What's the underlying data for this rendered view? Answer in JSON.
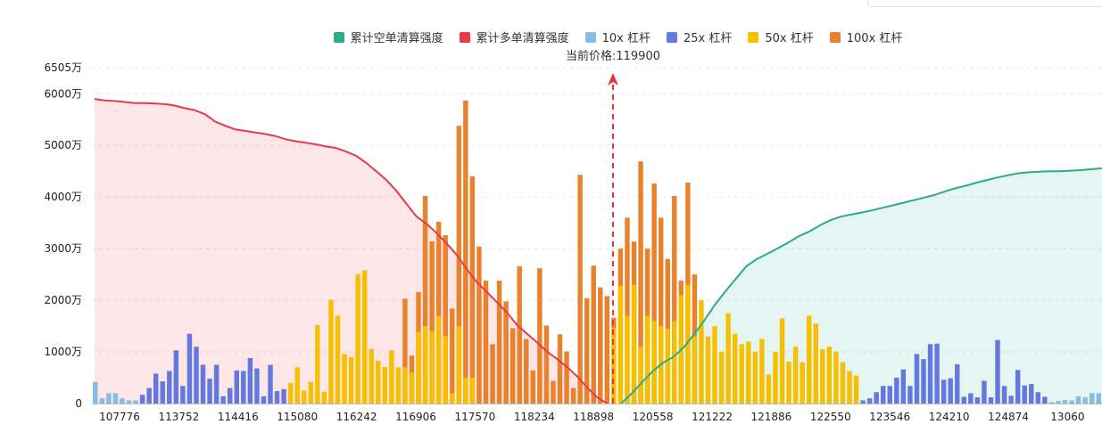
{
  "chart_data": {
    "type": "bar",
    "current_price_label": "当前价格:119900",
    "current_price": 119900,
    "legend": [
      {
        "label": "累计空单清算强度",
        "color": "#2bab8a"
      },
      {
        "label": "累计多单清算强度",
        "color": "#e83a4a"
      },
      {
        "label": "10x 杠杆",
        "color": "#86bde0"
      },
      {
        "label": "25x 杠杆",
        "color": "#6479e0"
      },
      {
        "label": "50x 杠杆",
        "color": "#f6c000"
      },
      {
        "label": "100x 杠杆",
        "color": "#e8822c"
      }
    ],
    "yticks": [
      {
        "label": "6505万",
        "value": 6505
      },
      {
        "label": "6000万",
        "value": 6000
      },
      {
        "label": "5000万",
        "value": 5000
      },
      {
        "label": "4000万",
        "value": 4000
      },
      {
        "label": "3000万",
        "value": 3000
      },
      {
        "label": "2000万",
        "value": 2000
      },
      {
        "label": "1000万",
        "value": 1000
      },
      {
        "label": "0",
        "value": 0
      }
    ],
    "ylim": [
      0,
      6505
    ],
    "xtick_labels": [
      "107776",
      "113752",
      "114416",
      "115080",
      "116242",
      "116906",
      "117570",
      "118234",
      "118898",
      "120558",
      "121222",
      "121886",
      "122550",
      "123546",
      "124210",
      "124874",
      "13060"
    ],
    "bars": [
      {
        "v": 420,
        "l": "10x"
      },
      {
        "v": 100,
        "l": "10x"
      },
      {
        "v": 200,
        "l": "10x"
      },
      {
        "v": 200,
        "l": "10x"
      },
      {
        "v": 100,
        "l": "10x"
      },
      {
        "v": 60,
        "l": "10x"
      },
      {
        "v": 60,
        "l": "10x"
      },
      {
        "v": 170,
        "l": "25x"
      },
      {
        "v": 300,
        "l": "25x"
      },
      {
        "v": 580,
        "l": "25x"
      },
      {
        "v": 430,
        "l": "25x"
      },
      {
        "v": 630,
        "l": "25x"
      },
      {
        "v": 1030,
        "l": "25x"
      },
      {
        "v": 340,
        "l": "25x"
      },
      {
        "v": 1350,
        "l": "25x"
      },
      {
        "v": 1100,
        "l": "25x"
      },
      {
        "v": 750,
        "l": "25x"
      },
      {
        "v": 480,
        "l": "25x"
      },
      {
        "v": 750,
        "l": "25x"
      },
      {
        "v": 140,
        "l": "25x"
      },
      {
        "v": 300,
        "l": "25x"
      },
      {
        "v": 640,
        "l": "25x"
      },
      {
        "v": 630,
        "l": "25x"
      },
      {
        "v": 880,
        "l": "25x"
      },
      {
        "v": 680,
        "l": "25x"
      },
      {
        "v": 140,
        "l": "25x"
      },
      {
        "v": 750,
        "l": "25x"
      },
      {
        "v": 240,
        "l": "25x"
      },
      {
        "v": 280,
        "l": "25x"
      },
      {
        "v": 400,
        "l": "50x"
      },
      {
        "v": 700,
        "l": "50x"
      },
      {
        "v": 250,
        "l": "50x"
      },
      {
        "v": 420,
        "l": "50x"
      },
      {
        "v": 1520,
        "l": "50x"
      },
      {
        "v": 230,
        "l": "50x"
      },
      {
        "v": 2010,
        "l": "50x"
      },
      {
        "v": 1700,
        "l": "50x"
      },
      {
        "v": 960,
        "l": "50x"
      },
      {
        "v": 900,
        "l": "50x"
      },
      {
        "v": 2500,
        "l": "50x"
      },
      {
        "v": 2580,
        "l": "50x"
      },
      {
        "v": 1060,
        "l": "50x"
      },
      {
        "v": 830,
        "l": "50x"
      },
      {
        "v": 710,
        "l": "50x"
      },
      {
        "v": 1030,
        "l": "50x"
      },
      {
        "v": 700,
        "l": "50x"
      },
      {
        "v": 2030,
        "l": "100x",
        "b": 700
      },
      {
        "v": 930,
        "l": "100x",
        "b": 600
      },
      {
        "v": 2160,
        "l": "100x",
        "b": 1390
      },
      {
        "v": 4020,
        "l": "100x",
        "b": 1500
      },
      {
        "v": 3140,
        "l": "100x",
        "b": 1400
      },
      {
        "v": 3520,
        "l": "100x",
        "b": 1700
      },
      {
        "v": 3260,
        "l": "100x",
        "b": 1300
      },
      {
        "v": 1840,
        "l": "100x",
        "b": 200
      },
      {
        "v": 5380,
        "l": "100x",
        "b": 1500
      },
      {
        "v": 5870,
        "l": "100x",
        "b": 500
      },
      {
        "v": 4400,
        "l": "100x",
        "b": 500
      },
      {
        "v": 3040,
        "l": "100x"
      },
      {
        "v": 2380,
        "l": "100x"
      },
      {
        "v": 1150,
        "l": "100x"
      },
      {
        "v": 2380,
        "l": "100x"
      },
      {
        "v": 1980,
        "l": "100x"
      },
      {
        "v": 1460,
        "l": "100x"
      },
      {
        "v": 2660,
        "l": "100x"
      },
      {
        "v": 1250,
        "l": "100x"
      },
      {
        "v": 640,
        "l": "100x"
      },
      {
        "v": 2620,
        "l": "100x"
      },
      {
        "v": 1510,
        "l": "100x"
      },
      {
        "v": 440,
        "l": "100x"
      },
      {
        "v": 1340,
        "l": "100x"
      },
      {
        "v": 1010,
        "l": "100x"
      },
      {
        "v": 300,
        "l": "100x"
      },
      {
        "v": 4430,
        "l": "100x"
      },
      {
        "v": 2040,
        "l": "100x"
      },
      {
        "v": 2670,
        "l": "100x"
      },
      {
        "v": 2250,
        "l": "100x"
      },
      {
        "v": 2080,
        "l": "100x"
      },
      {
        "v": 1660,
        "l": "100x",
        "b": 1460
      },
      {
        "v": 3000,
        "l": "100x",
        "b": 2280
      },
      {
        "v": 3600,
        "l": "100x",
        "b": 1700
      },
      {
        "v": 3140,
        "l": "100x",
        "b": 2300
      },
      {
        "v": 4690,
        "l": "100x",
        "b": 1100
      },
      {
        "v": 3000,
        "l": "100x",
        "b": 1700
      },
      {
        "v": 4260,
        "l": "100x",
        "b": 1600
      },
      {
        "v": 3600,
        "l": "100x",
        "b": 1500
      },
      {
        "v": 2800,
        "l": "100x",
        "b": 1450
      },
      {
        "v": 4020,
        "l": "100x",
        "b": 1600
      },
      {
        "v": 2380,
        "l": "100x",
        "b": 2100
      },
      {
        "v": 4280,
        "l": "100x",
        "b": 2300
      },
      {
        "v": 2500,
        "l": "100x",
        "b": 1300
      },
      {
        "v": 2000,
        "l": "50x"
      },
      {
        "v": 1300,
        "l": "50x"
      },
      {
        "v": 1500,
        "l": "50x"
      },
      {
        "v": 1000,
        "l": "50x"
      },
      {
        "v": 1750,
        "l": "50x"
      },
      {
        "v": 1350,
        "l": "50x"
      },
      {
        "v": 1150,
        "l": "50x"
      },
      {
        "v": 1200,
        "l": "50x"
      },
      {
        "v": 1000,
        "l": "50x"
      },
      {
        "v": 1250,
        "l": "50x"
      },
      {
        "v": 560,
        "l": "50x"
      },
      {
        "v": 1000,
        "l": "50x"
      },
      {
        "v": 1650,
        "l": "50x"
      },
      {
        "v": 810,
        "l": "50x"
      },
      {
        "v": 1100,
        "l": "50x"
      },
      {
        "v": 800,
        "l": "50x"
      },
      {
        "v": 1700,
        "l": "50x"
      },
      {
        "v": 1550,
        "l": "50x"
      },
      {
        "v": 1050,
        "l": "50x"
      },
      {
        "v": 1100,
        "l": "50x"
      },
      {
        "v": 1000,
        "l": "50x"
      },
      {
        "v": 800,
        "l": "50x"
      },
      {
        "v": 630,
        "l": "50x"
      },
      {
        "v": 540,
        "l": "50x"
      },
      {
        "v": 60,
        "l": "25x"
      },
      {
        "v": 100,
        "l": "25x"
      },
      {
        "v": 220,
        "l": "25x"
      },
      {
        "v": 340,
        "l": "25x"
      },
      {
        "v": 340,
        "l": "25x"
      },
      {
        "v": 500,
        "l": "25x"
      },
      {
        "v": 660,
        "l": "25x"
      },
      {
        "v": 340,
        "l": "25x"
      },
      {
        "v": 960,
        "l": "25x"
      },
      {
        "v": 860,
        "l": "25x"
      },
      {
        "v": 1150,
        "l": "25x"
      },
      {
        "v": 1160,
        "l": "25x"
      },
      {
        "v": 460,
        "l": "25x"
      },
      {
        "v": 490,
        "l": "25x"
      },
      {
        "v": 760,
        "l": "25x"
      },
      {
        "v": 130,
        "l": "25x"
      },
      {
        "v": 200,
        "l": "25x"
      },
      {
        "v": 120,
        "l": "25x"
      },
      {
        "v": 440,
        "l": "25x"
      },
      {
        "v": 120,
        "l": "25x"
      },
      {
        "v": 1230,
        "l": "25x"
      },
      {
        "v": 340,
        "l": "25x"
      },
      {
        "v": 150,
        "l": "25x"
      },
      {
        "v": 650,
        "l": "25x"
      },
      {
        "v": 350,
        "l": "25x"
      },
      {
        "v": 380,
        "l": "25x"
      },
      {
        "v": 220,
        "l": "25x"
      },
      {
        "v": 130,
        "l": "25x"
      },
      {
        "v": 30,
        "l": "10x"
      },
      {
        "v": 50,
        "l": "10x"
      },
      {
        "v": 70,
        "l": "10x"
      },
      {
        "v": 60,
        "l": "10x"
      },
      {
        "v": 140,
        "l": "10x"
      },
      {
        "v": 120,
        "l": "10x"
      },
      {
        "v": 200,
        "l": "10x"
      },
      {
        "v": 200,
        "l": "10x"
      }
    ],
    "long_cumulative": [
      5900,
      5870,
      5860,
      5840,
      5820,
      5820,
      5810,
      5800,
      5770,
      5720,
      5680,
      5600,
      5460,
      5380,
      5310,
      5280,
      5250,
      5220,
      5180,
      5120,
      5080,
      5050,
      5020,
      4980,
      4950,
      4880,
      4800,
      4660,
      4500,
      4330,
      4120,
      3870,
      3620,
      3480,
      3300,
      3100,
      2880,
      2600,
      2350,
      2160,
      1960,
      1760,
      1520,
      1350,
      1180,
      1000,
      860,
      700,
      520,
      300,
      110,
      0
    ],
    "short_cumulative": [
      0,
      190,
      410,
      620,
      790,
      900,
      1090,
      1340,
      1620,
      1920,
      2180,
      2420,
      2660,
      2800,
      2900,
      3010,
      3120,
      3240,
      3330,
      3450,
      3550,
      3620,
      3660,
      3700,
      3740,
      3790,
      3840,
      3890,
      3940,
      3990,
      4040,
      4110,
      4170,
      4220,
      4280,
      4330,
      4380,
      4420,
      4460,
      4480,
      4490,
      4500,
      4500,
      4510,
      4520,
      4540,
      4555
    ]
  }
}
